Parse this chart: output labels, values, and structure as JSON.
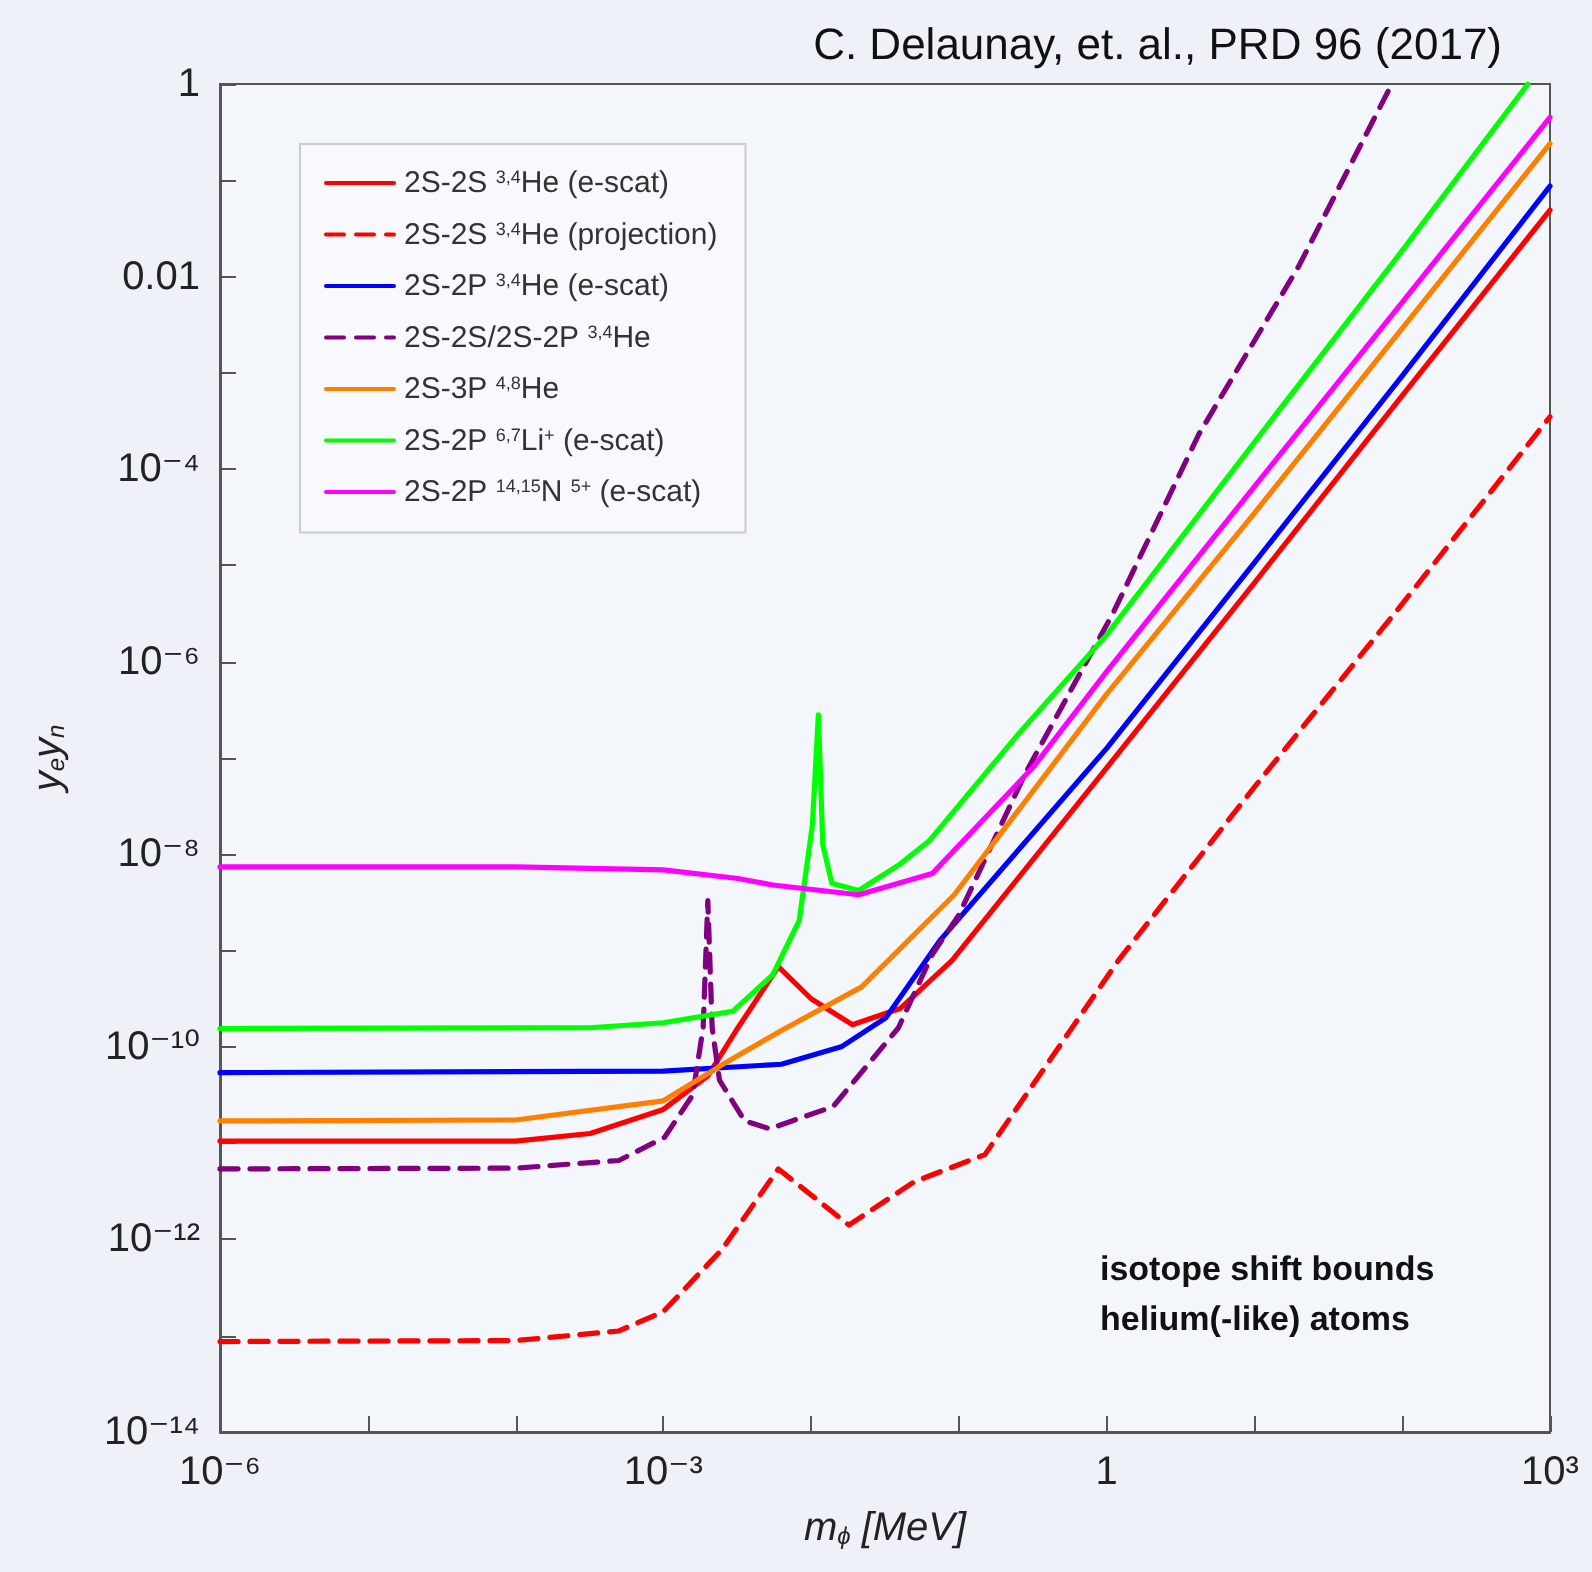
{
  "chart_data": {
    "type": "line",
    "title": "C. Delaunay, et. al., PRD 96 (2017)",
    "xlabel": "m$_{ϕ}$ [MeV]",
    "ylabel": "y$_{e}$y$_{n}$",
    "log": "xy",
    "grid": false,
    "legend": "top left",
    "marker": "none",
    "xlim": [
      1e-06,
      1000
    ],
    "ylim": [
      1e-14,
      1
    ],
    "xticks": [
      {
        "value": 1e-06,
        "label": "10⁻⁶"
      },
      {
        "value": 1e-05,
        "label": null
      },
      {
        "value": 0.0001,
        "label": null
      },
      {
        "value": 0.001,
        "label": "10⁻³"
      },
      {
        "value": 0.01,
        "label": null
      },
      {
        "value": 0.1,
        "label": null
      },
      1,
      {
        "value": 10,
        "label": null
      },
      {
        "value": 100,
        "label": null
      },
      {
        "value": 1000,
        "label": "10³"
      }
    ],
    "yticks": [
      {
        "value": 1e-14,
        "label": "10⁻¹⁴"
      },
      {
        "value": 1e-13,
        "label": null
      },
      {
        "value": 1e-12,
        "label": "10⁻¹²"
      },
      {
        "value": 1e-11,
        "label": null
      },
      {
        "value": 1e-10,
        "label": "10⁻¹⁰"
      },
      {
        "value": 1e-09,
        "label": null
      },
      {
        "value": 1e-08,
        "label": "10⁻⁸"
      },
      {
        "value": 1e-07,
        "label": null
      },
      {
        "value": 1e-06,
        "label": "10⁻⁶"
      },
      {
        "value": 1e-05,
        "label": null
      },
      {
        "value": 0.0001,
        "label": "10⁻⁴"
      },
      {
        "value": 0.001,
        "label": null
      },
      0.01,
      {
        "value": 0.1,
        "label": null
      },
      1
    ],
    "annotations": [
      "isotope shift bounds helium(-like) atoms"
    ],
    "series": [
      {
        "name": "2S-2S $^{3,4}$He (e-scat)",
        "color": "#ff0000",
        "line_style": "solid",
        "x": [
          1e-06,
          0.0001,
          0.00032,
          0.001,
          0.002,
          0.0032,
          0.006,
          0.01,
          0.019,
          0.04,
          0.09,
          1,
          10,
          100,
          1000
        ],
        "values": [
          1.05e-11,
          1.05e-11,
          1.26e-11,
          2.24e-11,
          5e-11,
          1.58e-10,
          6.8e-10,
          3.16e-10,
          1.7e-10,
          2.5e-10,
          7.9e-10,
          7.9e-08,
          6.6e-06,
          0.00058,
          0.049
        ]
      },
      {
        "name": "2S-2S $^{3,4}$He (projection)",
        "color": "#ff0000",
        "line_style": "dashed",
        "x": [
          1e-06,
          0.0001,
          0.0005,
          0.001,
          0.0025,
          0.006,
          0.018,
          0.05,
          0.15,
          1.2,
          10,
          100,
          1000
        ],
        "values": [
          8.7e-14,
          8.9e-14,
          1.12e-13,
          1.78e-13,
          7.9e-13,
          5.4e-12,
          1.41e-12,
          3.98e-12,
          7.6e-12,
          7.9e-10,
          5e-08,
          3.98e-06,
          0.00035
        ]
      },
      {
        "name": "2S-2P $^{3,4}$He (e-scat)",
        "color": "#0000ff",
        "line_style": "solid",
        "x": [
          1e-06,
          0.001,
          0.0063,
          0.016,
          0.032,
          0.074,
          1,
          10,
          100,
          1000
        ],
        "values": [
          5.4e-11,
          5.6e-11,
          6.6e-11,
          1e-10,
          2e-10,
          1.26e-09,
          1.26e-07,
          1.07e-05,
          0.00093,
          0.087
        ]
      },
      {
        "name": "2S-2S/2S-2P $^{3,4}$He",
        "color": "#800080",
        "line_style": "dashed",
        "x": [
          1e-06,
          0.0001,
          0.0005,
          0.00102,
          0.00158,
          0.00186,
          0.002,
          0.00214,
          0.0024,
          0.00355,
          0.00525,
          0.0141,
          0.039,
          0.066,
          0.1,
          0.28,
          1.1,
          4.2,
          20,
          85
        ],
        "values": [
          5.4e-12,
          5.5e-12,
          6.6e-12,
          1.15e-11,
          3.16e-11,
          1.58e-10,
          3.3e-09,
          1.58e-10,
          4.5e-11,
          1.7e-11,
          1.41e-11,
          2.4e-11,
          1.58e-10,
          9.1e-10,
          2.34e-09,
          6.8e-08,
          3.16e-06,
          0.00023,
          0.0129,
          1
        ]
      },
      {
        "name": "2S-3P $^{4,8}$He",
        "color": "#ff8000",
        "line_style": "solid",
        "x": [
          1e-06,
          0.0001,
          0.001,
          0.0025,
          0.0063,
          0.022,
          0.093,
          1,
          10,
          100,
          1000
        ],
        "values": [
          1.7e-11,
          1.74e-11,
          2.75e-11,
          6.5e-11,
          1.48e-10,
          4.2e-10,
          3.8e-09,
          4.6e-07,
          3.5e-05,
          0.0029,
          0.24
        ]
      },
      {
        "name": "2S-2P $^{6,7}$Li$^{+}$ (e-scat)",
        "color": "#00ff00",
        "line_style": "solid",
        "x": [
          1e-06,
          0.00032,
          0.001,
          0.00295,
          0.0055,
          0.0083,
          0.0102,
          0.0112,
          0.012,
          0.0138,
          0.021,
          0.04,
          0.063,
          0.25,
          1,
          10,
          100,
          708
        ],
        "values": [
          1.55e-10,
          1.58e-10,
          1.78e-10,
          2.34e-10,
          5.6e-10,
          2.04e-09,
          2e-08,
          2.8e-07,
          1.26e-08,
          5e-09,
          4.2e-09,
          7.9e-09,
          1.38e-08,
          1.74e-07,
          1.9e-06,
          0.00019,
          0.0186,
          1
        ]
      },
      {
        "name": "2S-2P $^{14,15}$N $^{5+}$ (e-scat)",
        "color": "#ff00ff",
        "line_style": "solid",
        "x": [
          1e-06,
          0.0001,
          0.001,
          0.0032,
          0.0055,
          0.021,
          0.066,
          0.32,
          1,
          10,
          100,
          1000
        ],
        "values": [
          7.4e-09,
          7.4e-09,
          6.9e-09,
          5.6e-09,
          4.8e-09,
          3.8e-09,
          6.3e-09,
          8.1e-08,
          7.9e-07,
          6.6e-05,
          0.0054,
          0.45
        ]
      }
    ]
  }
}
